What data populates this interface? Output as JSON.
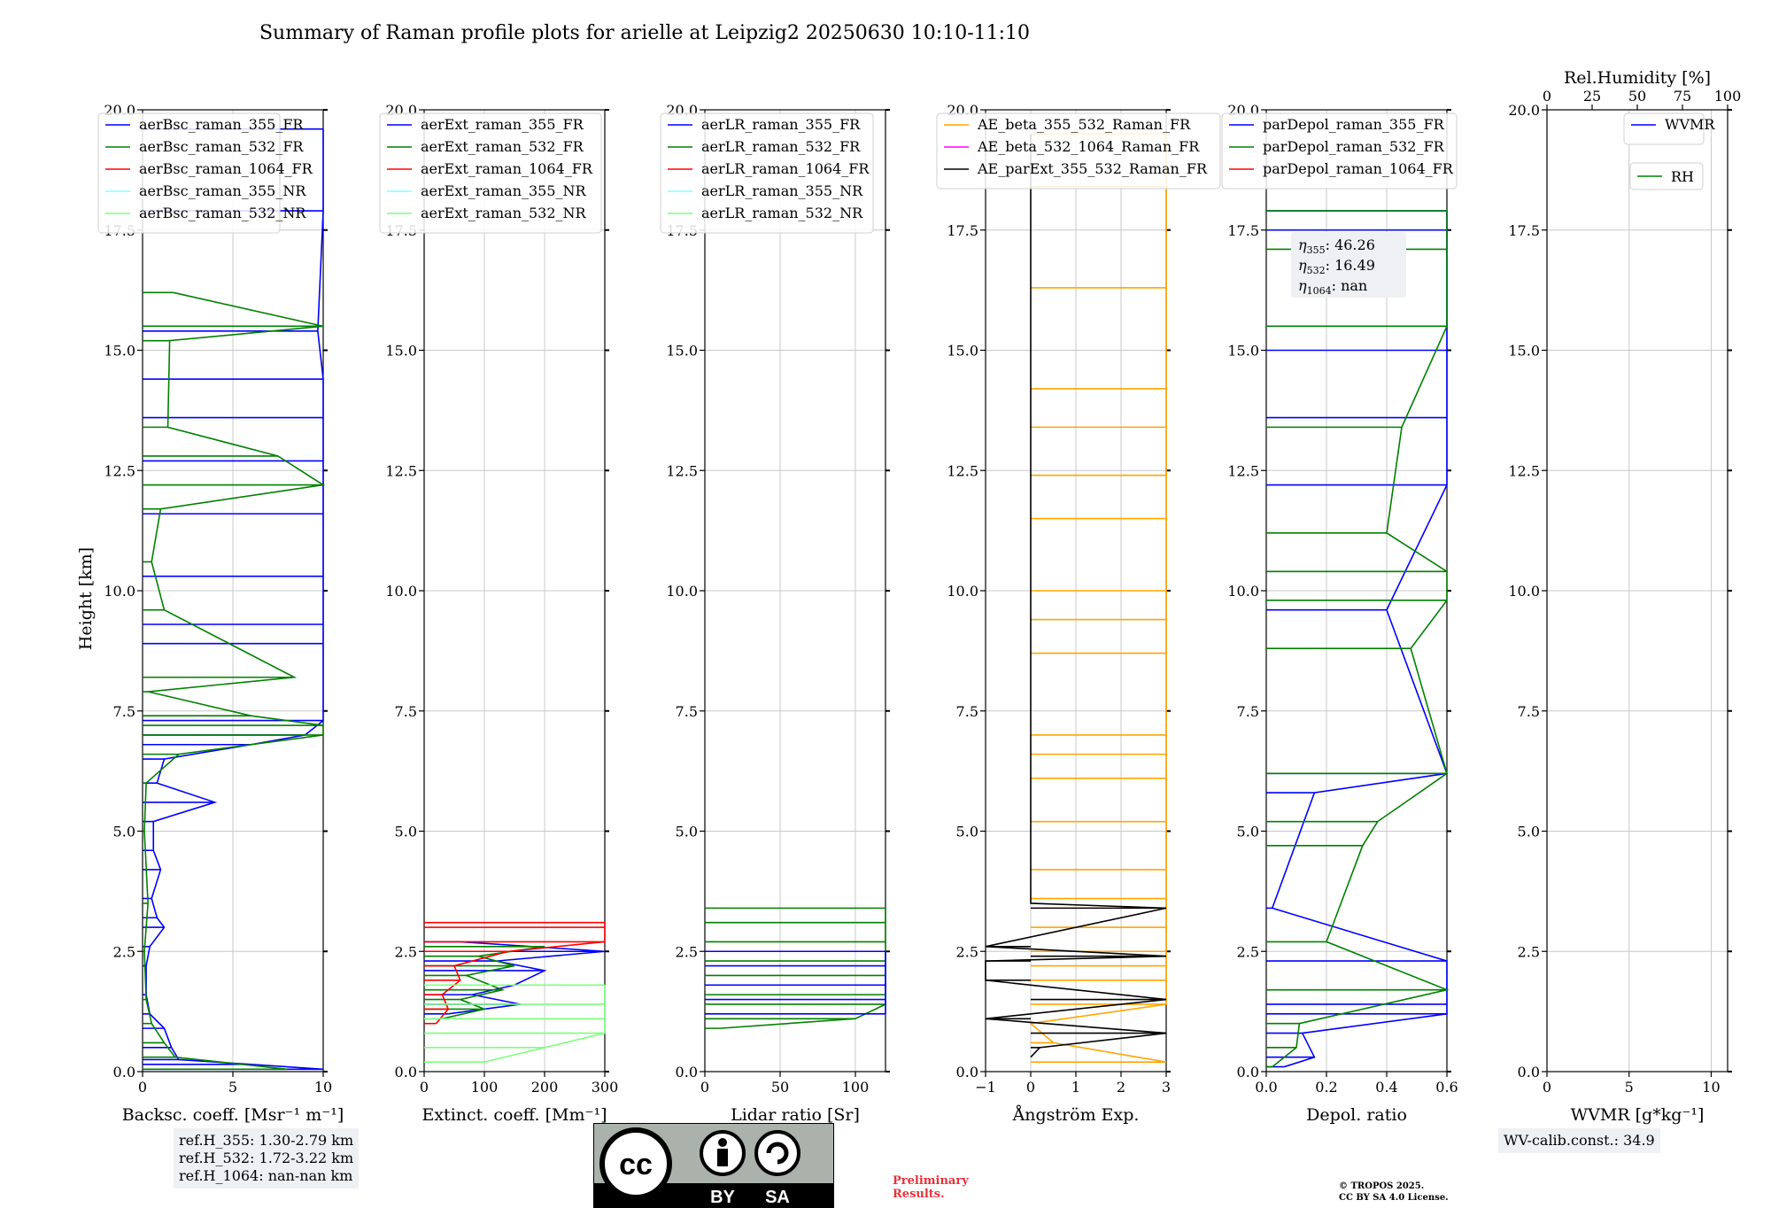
{
  "figure": {
    "title": "Summary of Raman profile plots for arielle at Leipzig2 20250630 10:10-11:10",
    "ylabel": "Height [km]",
    "preliminary": "Preliminary\nResults.",
    "copyright": "© TROPOS 2025.\nCC BY SA 4.0 License.",
    "license_badge": {
      "by": "BY",
      "sa": "SA",
      "cc": "cc"
    }
  },
  "colors": {
    "blue": "#0000ff",
    "green": "#008000",
    "red": "#ff0000",
    "cyan": "#80ffff",
    "lightgreen": "#7cff7c",
    "orange": "#ffa500",
    "magenta": "#ff00ff",
    "black": "#000000"
  },
  "chart_data": [
    {
      "type": "line",
      "id": "bsc",
      "xlabel": "Backsc. coeff. [Msr⁻¹ m⁻¹]",
      "xlim": [
        0,
        10
      ],
      "xticks": [
        "0",
        "5",
        "10"
      ],
      "ylim": [
        0,
        20
      ],
      "yticks": [
        "0.0",
        "2.5",
        "5.0",
        "7.5",
        "10.0",
        "12.5",
        "15.0",
        "17.5",
        "20.0"
      ],
      "legend": [
        "aerBsc_raman_355_FR",
        "aerBsc_raman_532_FR",
        "aerBsc_raman_1064_FR",
        "aerBsc_raman_355_NR",
        "aerBsc_raman_532_NR"
      ],
      "legend_colors": [
        "blue",
        "green",
        "red",
        "cyan",
        "lightgreen"
      ],
      "series": [
        {
          "name": "aerBsc_raman_355_FR",
          "color": "blue",
          "profile": [
            [
              0.05,
              10
            ],
            [
              0.15,
              6
            ],
            [
              0.25,
              2
            ],
            [
              0.5,
              1.6
            ],
            [
              0.9,
              1.2
            ],
            [
              1.2,
              0.4
            ],
            [
              1.6,
              0.2
            ],
            [
              2.2,
              0.2
            ],
            [
              2.6,
              0.4
            ],
            [
              3.0,
              1.2
            ],
            [
              3.2,
              0.8
            ],
            [
              3.6,
              0.5
            ],
            [
              4.2,
              1.0
            ],
            [
              4.6,
              0.6
            ],
            [
              5.2,
              0.6
            ],
            [
              5.6,
              4.0
            ],
            [
              6.0,
              0.8
            ],
            [
              6.5,
              1.2
            ],
            [
              6.8,
              6.0
            ],
            [
              7.0,
              9.0
            ],
            [
              7.3,
              10.0
            ],
            [
              8.9,
              10.0
            ],
            [
              9.3,
              10.0
            ],
            [
              10.3,
              10.0
            ],
            [
              11.6,
              10.0
            ],
            [
              12.7,
              10.0
            ],
            [
              13.6,
              10.0
            ],
            [
              14.4,
              10.0
            ],
            [
              15.4,
              9.7
            ],
            [
              17.9,
              10.0
            ],
            [
              19.6,
              10.0
            ]
          ]
        },
        {
          "name": "aerBsc_raman_532_FR",
          "color": "green",
          "profile": [
            [
              0.05,
              8
            ],
            [
              0.3,
              1.8
            ],
            [
              0.6,
              1.2
            ],
            [
              1.0,
              0.5
            ],
            [
              1.5,
              0.2
            ],
            [
              2.5,
              0.1
            ],
            [
              3.5,
              0.3
            ],
            [
              5.0,
              0.1
            ],
            [
              6.0,
              0.2
            ],
            [
              6.6,
              2.0
            ],
            [
              7.0,
              10.0
            ],
            [
              7.2,
              10.0
            ],
            [
              7.4,
              6.0
            ],
            [
              7.9,
              0.3
            ],
            [
              8.2,
              8.4
            ],
            [
              9.6,
              1.2
            ],
            [
              10.6,
              0.5
            ],
            [
              11.7,
              1.0
            ],
            [
              12.2,
              10.0
            ],
            [
              12.8,
              7.5
            ],
            [
              13.4,
              1.4
            ],
            [
              15.2,
              1.5
            ],
            [
              15.5,
              10.0
            ],
            [
              16.2,
              1.7
            ]
          ]
        }
      ],
      "textbox": [
        "ref.H_355: 1.30-2.79 km",
        "ref.H_532: 1.72-3.22 km",
        "ref.H_1064: nan-nan km"
      ]
    },
    {
      "type": "line",
      "id": "ext",
      "xlabel": "Extinct. coeff. [Mm⁻¹]",
      "xlim": [
        0,
        300
      ],
      "xticks": [
        "0",
        "100",
        "200",
        "300"
      ],
      "ylim": [
        0,
        20
      ],
      "yticks": [
        "0.0",
        "2.5",
        "5.0",
        "7.5",
        "10.0",
        "12.5",
        "15.0",
        "17.5",
        "20.0"
      ],
      "legend": [
        "aerExt_raman_355_FR",
        "aerExt_raman_532_FR",
        "aerExt_raman_1064_FR",
        "aerExt_raman_355_NR",
        "aerExt_raman_532_NR"
      ],
      "legend_colors": [
        "blue",
        "green",
        "red",
        "cyan",
        "lightgreen"
      ],
      "series": [
        {
          "name": "aerExt_raman_355_FR",
          "color": "blue",
          "profile": [
            [
              1.2,
              40
            ],
            [
              1.4,
              160
            ],
            [
              1.6,
              80
            ],
            [
              1.8,
              150
            ],
            [
              2.1,
              200
            ],
            [
              2.3,
              120
            ],
            [
              2.5,
              300
            ],
            [
              2.7,
              60
            ]
          ]
        },
        {
          "name": "aerExt_raman_532_FR",
          "color": "green",
          "profile": [
            [
              1.1,
              30
            ],
            [
              1.3,
              100
            ],
            [
              1.5,
              60
            ],
            [
              1.7,
              130
            ],
            [
              2.0,
              70
            ],
            [
              2.2,
              150
            ],
            [
              2.4,
              90
            ],
            [
              2.6,
              200
            ]
          ]
        },
        {
          "name": "aerExt_raman_1064_FR",
          "color": "red",
          "profile": [
            [
              1.0,
              20
            ],
            [
              1.3,
              40
            ],
            [
              1.6,
              30
            ],
            [
              1.9,
              60
            ],
            [
              2.2,
              50
            ],
            [
              2.5,
              140
            ],
            [
              2.7,
              300
            ],
            [
              3.0,
              300
            ],
            [
              3.1,
              300
            ]
          ]
        },
        {
          "name": "aerExt_raman_532_NR",
          "color": "lightgreen",
          "profile": [
            [
              0.2,
              100
            ],
            [
              0.5,
              200
            ],
            [
              0.8,
              300
            ],
            [
              1.1,
              300
            ],
            [
              1.4,
              300
            ],
            [
              1.8,
              300
            ]
          ]
        }
      ]
    },
    {
      "type": "line",
      "id": "lr",
      "xlabel": "Lidar ratio [Sr]",
      "xlim": [
        0,
        120
      ],
      "xticks": [
        "0",
        "50",
        "100"
      ],
      "ylim": [
        0,
        20
      ],
      "yticks": [
        "0.0",
        "2.5",
        "5.0",
        "7.5",
        "10.0",
        "12.5",
        "15.0",
        "17.5",
        "20.0"
      ],
      "legend": [
        "aerLR_raman_355_FR",
        "aerLR_raman_532_FR",
        "aerLR_raman_1064_FR",
        "aerLR_raman_355_NR",
        "aerLR_raman_532_NR"
      ],
      "legend_colors": [
        "blue",
        "green",
        "red",
        "cyan",
        "lightgreen"
      ],
      "series": [
        {
          "name": "aerLR_raman_532_FR",
          "color": "green",
          "profile": [
            [
              0.9,
              10
            ],
            [
              1.1,
              100
            ],
            [
              1.4,
              120
            ],
            [
              1.6,
              120
            ],
            [
              2.0,
              120
            ],
            [
              2.3,
              120
            ],
            [
              2.5,
              120
            ],
            [
              2.7,
              120
            ],
            [
              3.1,
              120
            ],
            [
              3.4,
              120
            ]
          ]
        },
        {
          "name": "aerLR_raman_355_FR",
          "color": "blue",
          "profile": [
            [
              1.2,
              120
            ],
            [
              1.5,
              120
            ],
            [
              1.8,
              120
            ],
            [
              2.2,
              120
            ],
            [
              2.5,
              120
            ]
          ]
        }
      ]
    },
    {
      "type": "line",
      "id": "ae",
      "xlabel": "Ångström Exp.",
      "xlim": [
        -1,
        3
      ],
      "xticks": [
        "−1",
        "0",
        "1",
        "2",
        "3"
      ],
      "ylim": [
        0,
        20
      ],
      "yticks": [
        "0.0",
        "2.5",
        "5.0",
        "7.5",
        "10.0",
        "12.5",
        "15.0",
        "17.5",
        "20.0"
      ],
      "legend": [
        "AE_beta_355_532_Raman_FR",
        "AE_beta_532_1064_Raman_FR",
        "AE_parExt_355_532_Raman_FR"
      ],
      "legend_colors": [
        "orange",
        "magenta",
        "black"
      ],
      "series": [
        {
          "name": "AE_beta_355_532_Raman_FR",
          "color": "orange",
          "profile": [
            [
              0.2,
              3
            ],
            [
              0.6,
              0.5
            ],
            [
              1.0,
              0
            ],
            [
              1.4,
              3
            ],
            [
              1.9,
              3
            ],
            [
              2.2,
              3
            ],
            [
              2.5,
              3
            ],
            [
              3.0,
              3
            ],
            [
              3.6,
              3
            ],
            [
              4.2,
              3
            ],
            [
              5.2,
              3
            ],
            [
              6.1,
              3
            ],
            [
              6.6,
              3
            ],
            [
              7.0,
              3
            ],
            [
              8.7,
              3
            ],
            [
              9.4,
              3
            ],
            [
              10.0,
              3
            ],
            [
              11.5,
              3
            ],
            [
              12.4,
              3
            ],
            [
              13.4,
              3
            ],
            [
              14.2,
              3
            ],
            [
              16.3,
              3
            ],
            [
              18.4,
              3
            ],
            [
              19.5,
              3
            ]
          ]
        },
        {
          "name": "AE_parExt_355_532_Raman_FR",
          "color": "black",
          "profile": [
            [
              0.3,
              0
            ],
            [
              0.5,
              0.2
            ],
            [
              0.8,
              3
            ],
            [
              1.1,
              -1
            ],
            [
              1.5,
              3
            ],
            [
              1.9,
              -1
            ],
            [
              2.3,
              -1
            ],
            [
              2.4,
              3
            ],
            [
              2.6,
              -1
            ],
            [
              3.4,
              3
            ],
            [
              3.5,
              0
            ],
            [
              19.5,
              0
            ]
          ]
        }
      ]
    },
    {
      "type": "line",
      "id": "depol",
      "xlabel": "Depol. ratio",
      "xlim": [
        0,
        0.6
      ],
      "xticks": [
        "0.0",
        "0.2",
        "0.4",
        "0.6"
      ],
      "ylim": [
        0,
        20
      ],
      "yticks": [
        "0.0",
        "2.5",
        "5.0",
        "7.5",
        "10.0",
        "12.5",
        "15.0",
        "17.5",
        "20.0"
      ],
      "legend": [
        "parDepol_raman_355_FR",
        "parDepol_raman_532_FR",
        "parDepol_raman_1064_FR"
      ],
      "legend_colors": [
        "blue",
        "green",
        "red"
      ],
      "series": [
        {
          "name": "parDepol_raman_355_FR",
          "color": "blue",
          "profile": [
            [
              0.1,
              0.06
            ],
            [
              0.3,
              0.16
            ],
            [
              0.8,
              0.12
            ],
            [
              1.2,
              0.6
            ],
            [
              1.4,
              0.6
            ],
            [
              2.3,
              0.6
            ],
            [
              3.4,
              0.02
            ],
            [
              5.8,
              0.16
            ],
            [
              6.2,
              0.6
            ],
            [
              9.6,
              0.4
            ],
            [
              12.2,
              0.6
            ],
            [
              13.6,
              0.6
            ],
            [
              15.0,
              0.6
            ],
            [
              17.5,
              0.6
            ],
            [
              17.9,
              0.6
            ]
          ]
        },
        {
          "name": "parDepol_raman_532_FR",
          "color": "green",
          "profile": [
            [
              0.1,
              0.02
            ],
            [
              0.5,
              0.1
            ],
            [
              1.0,
              0.11
            ],
            [
              1.7,
              0.6
            ],
            [
              2.7,
              0.2
            ],
            [
              4.7,
              0.32
            ],
            [
              5.2,
              0.37
            ],
            [
              6.2,
              0.6
            ],
            [
              8.8,
              0.48
            ],
            [
              9.8,
              0.6
            ],
            [
              10.4,
              0.6
            ],
            [
              11.2,
              0.4
            ],
            [
              13.4,
              0.45
            ],
            [
              15.5,
              0.6
            ],
            [
              17.1,
              0.6
            ],
            [
              17.9,
              0.6
            ]
          ]
        }
      ],
      "annotation": {
        "eta355": "46.26",
        "eta532": "16.49",
        "eta1064": "nan"
      }
    },
    {
      "type": "line",
      "id": "wv",
      "xlabel": "WVMR [g*kg⁻¹]",
      "xlim": [
        0,
        11
      ],
      "xticks": [
        "0",
        "5",
        "10"
      ],
      "ylim": [
        0,
        20
      ],
      "yticks": [
        "0.0",
        "2.5",
        "5.0",
        "7.5",
        "10.0",
        "12.5",
        "15.0",
        "17.5",
        "20.0"
      ],
      "top_label": "Rel.Humidity [%]",
      "top_ticks": [
        "0",
        "25",
        "50",
        "75",
        "100"
      ],
      "legend": [
        "WVMR"
      ],
      "legend_colors": [
        "blue"
      ],
      "legend2": [
        "RH"
      ],
      "legend2_colors": [
        "green"
      ],
      "series": [],
      "textbox": [
        "WV-calib.const.: 34.9"
      ]
    }
  ]
}
